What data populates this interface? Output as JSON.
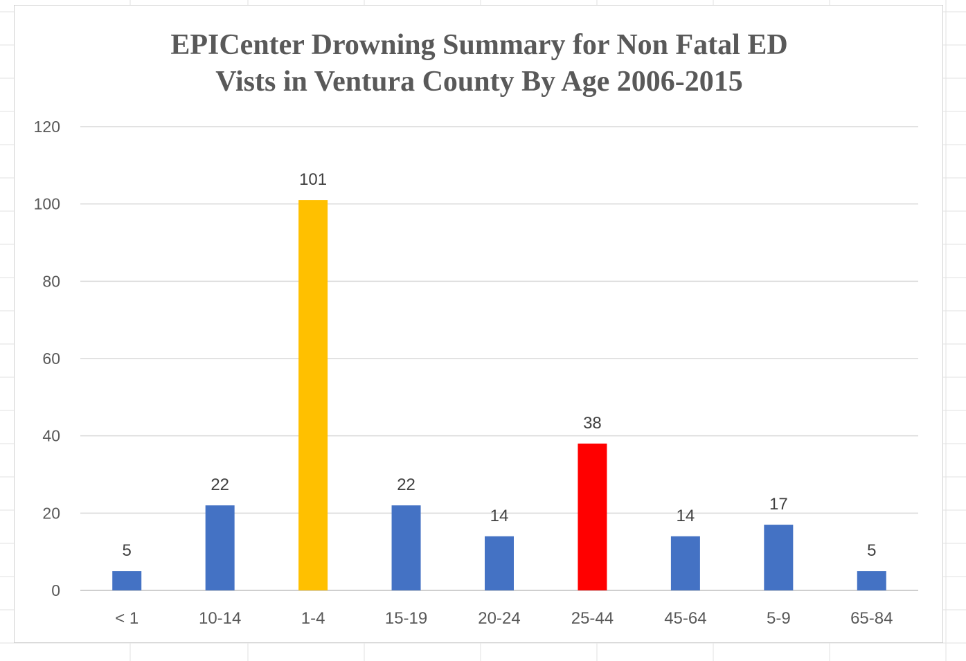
{
  "chart_data": {
    "type": "bar",
    "title_lines": [
      "EPICenter Drowning Summary for Non Fatal ED",
      "Vists in Ventura County By Age 2006-2015"
    ],
    "categories": [
      "< 1",
      "10-14",
      "1-4",
      "15-19",
      "20-24",
      "25-44",
      "45-64",
      "5-9",
      "65-84"
    ],
    "values": [
      5,
      22,
      101,
      22,
      14,
      38,
      14,
      17,
      5
    ],
    "bar_colors": [
      "#4472c4",
      "#4472c4",
      "#ffc000",
      "#4472c4",
      "#4472c4",
      "#ff0000",
      "#4472c4",
      "#4472c4",
      "#4472c4"
    ],
    "data_labels": [
      "5",
      "22",
      "101",
      "22",
      "14",
      "38",
      "14",
      "17",
      "5"
    ],
    "yticks": [
      0,
      20,
      40,
      60,
      80,
      100,
      120
    ],
    "ytick_labels": [
      "0",
      "20",
      "40",
      "60",
      "80",
      "100",
      "120"
    ],
    "ylim": [
      0,
      120
    ],
    "xlabel": "",
    "ylabel": "",
    "grid": true,
    "legend": "none"
  }
}
